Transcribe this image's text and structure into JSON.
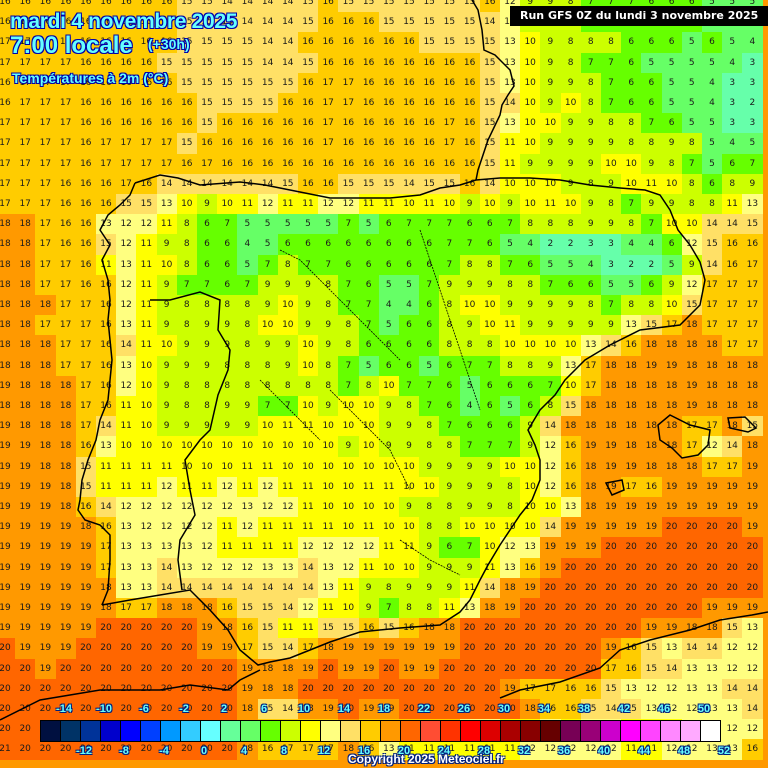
{
  "header": {
    "date": "mardi 4 novembre 2025",
    "time": "7:00 locale",
    "lead": "(+30h)",
    "parameter": "Températures à 2m (°C)",
    "run": "Run GFS 0Z du lundi 3 novembre 2025"
  },
  "footer": {
    "copyright": "Copyright 2025 Meteociel.fr"
  },
  "legend": {
    "top_labels": [
      "-14",
      "-10",
      "-6",
      "-2",
      "2",
      "6",
      "10",
      "14",
      "18",
      "22",
      "26",
      "30",
      "34",
      "38",
      "42",
      "46",
      "50"
    ],
    "bottom_labels": [
      "-12",
      "-8",
      "-4",
      "0",
      "4",
      "8",
      "12",
      "16",
      "20",
      "24",
      "28",
      "32",
      "36",
      "40",
      "44",
      "48",
      "52"
    ],
    "colors": [
      "#001040",
      "#003366",
      "#003399",
      "#0000cc",
      "#0000ff",
      "#0040ff",
      "#0099ff",
      "#33ccff",
      "#66ffff",
      "#66ff99",
      "#66ff66",
      "#66ff00",
      "#ccff00",
      "#ffff00",
      "#ffff80",
      "#ffe066",
      "#ffcc00",
      "#ff9900",
      "#ff6600",
      "#ff4d33",
      "#ff3300",
      "#ff0000",
      "#dd0000",
      "#aa0000",
      "#880000",
      "#660000",
      "#770055",
      "#990077",
      "#cc00cc",
      "#ff00ff",
      "#ff44ff",
      "#ff88ff",
      "#ffaaff",
      "#ffffff"
    ]
  },
  "map": {
    "rows": [
      [
        16,
        16,
        16,
        16,
        16,
        16,
        16,
        16,
        16,
        15,
        15,
        14,
        14,
        14,
        14,
        15,
        16,
        15,
        15,
        15,
        15,
        15,
        15,
        15,
        16,
        12,
        9,
        9,
        8,
        7,
        7,
        7,
        6,
        6,
        6,
        5,
        5,
        5
      ],
      [
        16,
        16,
        16,
        16,
        16,
        16,
        16,
        16,
        16,
        15,
        15,
        14,
        14,
        14,
        14,
        15,
        16,
        16,
        16,
        15,
        15,
        15,
        15,
        15,
        14,
        13,
        9,
        9,
        8,
        7,
        7,
        7,
        6,
        6,
        6,
        5,
        5,
        5
      ],
      [
        17,
        17,
        17,
        17,
        16,
        16,
        16,
        16,
        16,
        15,
        15,
        15,
        15,
        14,
        14,
        16,
        16,
        16,
        16,
        16,
        16,
        15,
        15,
        15,
        15,
        13,
        10,
        9,
        8,
        8,
        8,
        6,
        6,
        6,
        5,
        6,
        5,
        4
      ],
      [
        17,
        17,
        17,
        17,
        16,
        16,
        16,
        16,
        15,
        15,
        15,
        15,
        15,
        14,
        14,
        15,
        16,
        16,
        16,
        16,
        16,
        16,
        16,
        16,
        15,
        13,
        10,
        9,
        8,
        7,
        7,
        6,
        5,
        5,
        5,
        5,
        4,
        3
      ],
      [
        16,
        17,
        17,
        17,
        16,
        16,
        16,
        16,
        16,
        15,
        15,
        15,
        15,
        15,
        15,
        16,
        17,
        17,
        16,
        16,
        16,
        16,
        16,
        16,
        15,
        13,
        10,
        9,
        9,
        8,
        7,
        6,
        6,
        5,
        5,
        4,
        3,
        3
      ],
      [
        16,
        17,
        17,
        17,
        16,
        16,
        16,
        16,
        16,
        16,
        15,
        15,
        15,
        15,
        16,
        16,
        17,
        17,
        16,
        16,
        16,
        16,
        16,
        16,
        15,
        14,
        10,
        9,
        10,
        8,
        7,
        6,
        6,
        5,
        5,
        4,
        3,
        2
      ],
      [
        17,
        17,
        17,
        17,
        16,
        16,
        16,
        16,
        16,
        16,
        15,
        16,
        16,
        16,
        16,
        16,
        17,
        16,
        16,
        16,
        16,
        16,
        17,
        16,
        15,
        13,
        10,
        10,
        9,
        9,
        8,
        8,
        7,
        6,
        5,
        5,
        3,
        3
      ],
      [
        17,
        17,
        17,
        17,
        16,
        17,
        17,
        17,
        17,
        15,
        16,
        16,
        16,
        16,
        16,
        16,
        17,
        16,
        16,
        16,
        16,
        16,
        17,
        16,
        15,
        11,
        10,
        9,
        9,
        9,
        9,
        8,
        8,
        9,
        8,
        5,
        4,
        5
      ],
      [
        17,
        17,
        17,
        17,
        16,
        17,
        17,
        17,
        17,
        16,
        17,
        16,
        16,
        16,
        16,
        16,
        16,
        16,
        16,
        16,
        16,
        16,
        16,
        16,
        15,
        11,
        9,
        9,
        9,
        9,
        10,
        10,
        9,
        8,
        7,
        5,
        6,
        7
      ],
      [
        17,
        17,
        17,
        16,
        16,
        16,
        17,
        16,
        14,
        14,
        14,
        14,
        14,
        14,
        15,
        16,
        16,
        15,
        15,
        15,
        14,
        15,
        15,
        16,
        14,
        10,
        10,
        10,
        9,
        8,
        9,
        10,
        11,
        10,
        8,
        6,
        8,
        9
      ],
      [
        17,
        17,
        17,
        16,
        16,
        16,
        15,
        15,
        13,
        10,
        9,
        10,
        11,
        12,
        11,
        11,
        12,
        12,
        11,
        11,
        10,
        11,
        10,
        9,
        10,
        9,
        10,
        11,
        10,
        9,
        8,
        7,
        9,
        9,
        8,
        8,
        11,
        13
      ],
      [
        18,
        18,
        17,
        16,
        16,
        13,
        12,
        12,
        11,
        8,
        6,
        7,
        5,
        5,
        5,
        5,
        5,
        7,
        5,
        6,
        7,
        7,
        7,
        6,
        6,
        7,
        8,
        8,
        8,
        9,
        9,
        8,
        7,
        10,
        10,
        14,
        14,
        15
      ],
      [
        18,
        18,
        17,
        16,
        16,
        15,
        12,
        11,
        9,
        8,
        6,
        6,
        4,
        5,
        6,
        6,
        6,
        6,
        6,
        6,
        6,
        6,
        7,
        7,
        6,
        5,
        4,
        2,
        2,
        3,
        3,
        4,
        4,
        6,
        12,
        15,
        16,
        16
      ],
      [
        18,
        18,
        17,
        17,
        16,
        11,
        13,
        11,
        10,
        8,
        6,
        6,
        5,
        7,
        8,
        7,
        7,
        6,
        6,
        6,
        6,
        6,
        7,
        8,
        8,
        7,
        6,
        5,
        5,
        4,
        3,
        2,
        2,
        5,
        9,
        14,
        16,
        17
      ],
      [
        18,
        18,
        17,
        17,
        16,
        16,
        12,
        11,
        9,
        7,
        7,
        6,
        7,
        9,
        9,
        9,
        8,
        7,
        6,
        5,
        5,
        7,
        9,
        9,
        9,
        8,
        8,
        7,
        6,
        6,
        5,
        5,
        6,
        9,
        12,
        17,
        17,
        17
      ],
      [
        18,
        18,
        18,
        17,
        17,
        16,
        12,
        11,
        9,
        8,
        8,
        8,
        8,
        9,
        10,
        9,
        8,
        7,
        7,
        4,
        4,
        6,
        8,
        10,
        10,
        9,
        9,
        9,
        9,
        8,
        7,
        8,
        8,
        10,
        15,
        17,
        17,
        17
      ],
      [
        18,
        18,
        17,
        17,
        17,
        16,
        13,
        11,
        9,
        8,
        9,
        9,
        8,
        10,
        10,
        9,
        9,
        8,
        7,
        5,
        6,
        6,
        8,
        9,
        10,
        11,
        9,
        9,
        9,
        9,
        9,
        13,
        15,
        17,
        18,
        17,
        17,
        17
      ],
      [
        18,
        18,
        18,
        17,
        17,
        16,
        14,
        11,
        10,
        9,
        9,
        9,
        8,
        9,
        9,
        10,
        9,
        8,
        6,
        6,
        6,
        6,
        8,
        8,
        8,
        10,
        10,
        10,
        10,
        13,
        14,
        16,
        18,
        18,
        18,
        18,
        17,
        17
      ],
      [
        18,
        18,
        18,
        17,
        17,
        16,
        13,
        10,
        9,
        9,
        9,
        8,
        8,
        8,
        9,
        10,
        8,
        7,
        5,
        6,
        6,
        5,
        6,
        7,
        7,
        8,
        8,
        9,
        13,
        17,
        18,
        18,
        19,
        19,
        18,
        18,
        18,
        18
      ],
      [
        19,
        18,
        18,
        18,
        17,
        16,
        12,
        10,
        9,
        8,
        8,
        8,
        8,
        8,
        8,
        8,
        8,
        7,
        8,
        10,
        7,
        7,
        6,
        5,
        6,
        6,
        6,
        7,
        10,
        17,
        18,
        18,
        18,
        18,
        19,
        18,
        18,
        18
      ],
      [
        18,
        18,
        18,
        18,
        17,
        16,
        11,
        10,
        9,
        8,
        8,
        9,
        9,
        7,
        7,
        10,
        9,
        10,
        10,
        9,
        8,
        7,
        6,
        4,
        6,
        5,
        6,
        8,
        15,
        18,
        18,
        18,
        18,
        18,
        19,
        18,
        18,
        18
      ],
      [
        19,
        18,
        18,
        18,
        17,
        14,
        11,
        10,
        9,
        9,
        9,
        9,
        9,
        10,
        11,
        11,
        10,
        10,
        10,
        9,
        9,
        8,
        7,
        6,
        6,
        6,
        9,
        14,
        18,
        18,
        18,
        18,
        18,
        18,
        17,
        17,
        18,
        15
      ],
      [
        19,
        19,
        18,
        18,
        16,
        13,
        10,
        10,
        10,
        10,
        10,
        10,
        10,
        10,
        10,
        10,
        10,
        9,
        10,
        9,
        9,
        8,
        8,
        7,
        7,
        7,
        9,
        12,
        16,
        19,
        19,
        18,
        18,
        18,
        17,
        12,
        14,
        18
      ],
      [
        19,
        19,
        18,
        18,
        15,
        11,
        11,
        11,
        11,
        10,
        10,
        10,
        11,
        11,
        10,
        10,
        10,
        10,
        10,
        10,
        10,
        9,
        9,
        9,
        9,
        10,
        10,
        12,
        16,
        18,
        19,
        19,
        18,
        18,
        18,
        17,
        17,
        19
      ],
      [
        19,
        19,
        19,
        18,
        15,
        11,
        11,
        11,
        12,
        11,
        11,
        12,
        11,
        12,
        11,
        11,
        10,
        10,
        11,
        11,
        10,
        10,
        9,
        9,
        9,
        8,
        10,
        12,
        16,
        18,
        19,
        17,
        16,
        19,
        19,
        19,
        19,
        19
      ],
      [
        19,
        19,
        19,
        18,
        16,
        14,
        12,
        12,
        12,
        12,
        12,
        12,
        13,
        12,
        12,
        11,
        10,
        10,
        10,
        10,
        9,
        8,
        8,
        9,
        9,
        8,
        10,
        10,
        13,
        18,
        19,
        19,
        19,
        19,
        19,
        19,
        19,
        19
      ],
      [
        19,
        19,
        19,
        19,
        18,
        16,
        13,
        12,
        12,
        12,
        12,
        11,
        12,
        11,
        11,
        11,
        11,
        10,
        11,
        10,
        10,
        8,
        8,
        10,
        10,
        10,
        10,
        14,
        19,
        19,
        19,
        19,
        19,
        20,
        20,
        20,
        20,
        19
      ],
      [
        19,
        19,
        19,
        19,
        19,
        17,
        13,
        13,
        13,
        13,
        12,
        11,
        11,
        11,
        11,
        12,
        12,
        12,
        12,
        11,
        11,
        9,
        6,
        7,
        10,
        12,
        13,
        19,
        19,
        19,
        20,
        20,
        20,
        20,
        20,
        20,
        20,
        20
      ],
      [
        19,
        19,
        19,
        19,
        19,
        17,
        13,
        13,
        14,
        13,
        12,
        12,
        12,
        13,
        13,
        14,
        13,
        12,
        11,
        10,
        10,
        9,
        9,
        9,
        11,
        13,
        16,
        19,
        20,
        20,
        20,
        20,
        20,
        20,
        20,
        20,
        20,
        20
      ],
      [
        19,
        19,
        19,
        19,
        19,
        18,
        13,
        13,
        14,
        14,
        14,
        14,
        14,
        14,
        14,
        14,
        13,
        11,
        9,
        8,
        9,
        9,
        9,
        11,
        14,
        18,
        19,
        20,
        20,
        20,
        20,
        20,
        20,
        20,
        20,
        20,
        20,
        20
      ],
      [
        19,
        19,
        19,
        19,
        19,
        18,
        17,
        17,
        18,
        18,
        18,
        16,
        15,
        15,
        14,
        12,
        11,
        10,
        9,
        7,
        8,
        8,
        11,
        13,
        18,
        19,
        20,
        20,
        20,
        20,
        20,
        20,
        20,
        20,
        20,
        19,
        19,
        19
      ],
      [
        19,
        19,
        19,
        19,
        19,
        20,
        20,
        20,
        20,
        20,
        19,
        18,
        16,
        15,
        11,
        11,
        15,
        15,
        16,
        15,
        16,
        18,
        18,
        20,
        20,
        20,
        20,
        20,
        20,
        20,
        20,
        20,
        19,
        19,
        18,
        18,
        15,
        13
      ],
      [
        20,
        19,
        19,
        19,
        20,
        20,
        20,
        20,
        20,
        20,
        19,
        19,
        17,
        15,
        14,
        17,
        18,
        19,
        19,
        19,
        19,
        19,
        19,
        20,
        20,
        20,
        20,
        20,
        20,
        20,
        19,
        16,
        15,
        13,
        14,
        14,
        12,
        12
      ],
      [
        20,
        20,
        19,
        20,
        20,
        20,
        20,
        20,
        20,
        20,
        20,
        20,
        19,
        18,
        18,
        19,
        20,
        19,
        19,
        20,
        19,
        19,
        20,
        20,
        20,
        20,
        20,
        20,
        20,
        20,
        17,
        16,
        15,
        14,
        13,
        13,
        12,
        12
      ],
      [
        20,
        20,
        20,
        20,
        20,
        20,
        20,
        20,
        20,
        20,
        20,
        20,
        19,
        18,
        18,
        20,
        20,
        20,
        20,
        20,
        20,
        20,
        20,
        20,
        20,
        19,
        17,
        17,
        16,
        16,
        15,
        13,
        12,
        12,
        13,
        13,
        14,
        14
      ],
      [
        20,
        20,
        20,
        20,
        20,
        20,
        20,
        20,
        20,
        20,
        20,
        20,
        18,
        15,
        14,
        18,
        19,
        20,
        19,
        19,
        20,
        20,
        20,
        20,
        20,
        20,
        18,
        16,
        16,
        15,
        14,
        15,
        13,
        12,
        12,
        13,
        13,
        14
      ],
      [
        20,
        20,
        20,
        20,
        20,
        20,
        20,
        20,
        20,
        20,
        20,
        20,
        19,
        16,
        17,
        17,
        17,
        18,
        17,
        17,
        17,
        17,
        16,
        13,
        12,
        11,
        11,
        12,
        11,
        12,
        12,
        11,
        11,
        11,
        12,
        12,
        12,
        12
      ],
      [
        21,
        20,
        20,
        20,
        20,
        20,
        20,
        20,
        20,
        20,
        20,
        20,
        18,
        16,
        17,
        17,
        17,
        18,
        16,
        13,
        11,
        11,
        11,
        11,
        11,
        11,
        12,
        12,
        12,
        12,
        12,
        11,
        11,
        12,
        12,
        13,
        13,
        16
      ]
    ]
  }
}
